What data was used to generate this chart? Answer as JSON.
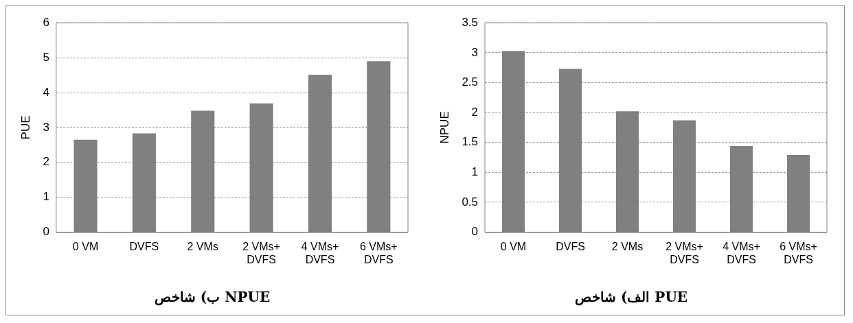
{
  "chart_data": [
    {
      "type": "bar",
      "title": "الف) شاخص PUE",
      "ylabel": "NPUE",
      "categories": [
        "0 VM",
        "DVFS",
        "2 VMs",
        "2 VMs+ DVFS",
        "4 VMs+ DVFS",
        "6 VMs+ DVFS"
      ],
      "values": [
        3.03,
        2.73,
        2.02,
        1.87,
        1.44,
        1.29
      ],
      "color": "#808080",
      "ylim": [
        0,
        3.5
      ],
      "yticks": [
        0,
        0.5,
        1,
        1.5,
        2,
        2.5,
        3,
        3.5
      ],
      "grid": "y"
    },
    {
      "type": "bar",
      "title": "ب) شاخص NPUE",
      "ylabel": "PUE",
      "categories": [
        "0 VM",
        "DVFS",
        "2 VMs",
        "2 VMs+ DVFS",
        "4 VMs+ DVFS",
        "6 VMs+ DVFS"
      ],
      "values": [
        2.65,
        2.83,
        3.48,
        3.69,
        4.51,
        4.9
      ],
      "color": "#808080",
      "ylim": [
        0,
        6
      ],
      "yticks": [
        0,
        1,
        2,
        3,
        4,
        5,
        6
      ],
      "grid": "y"
    }
  ]
}
